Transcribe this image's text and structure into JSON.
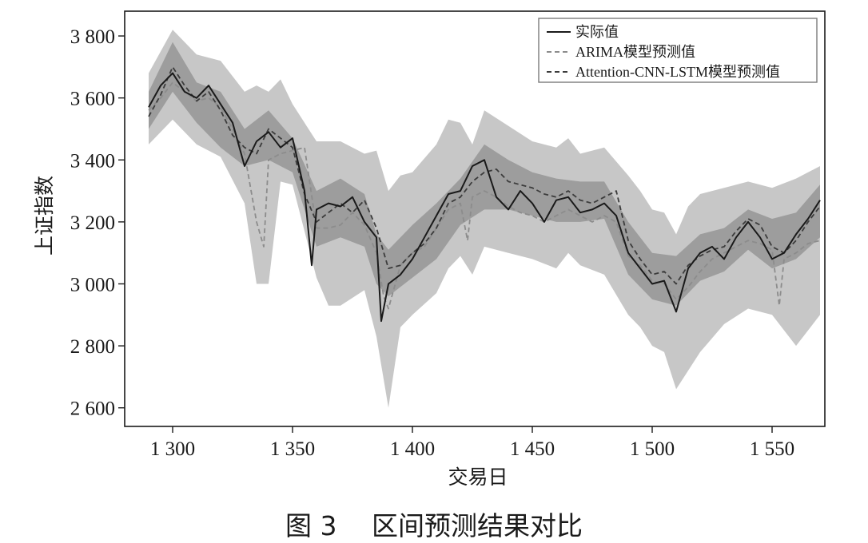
{
  "figure": {
    "caption": "图 3　 区间预测结果对比"
  },
  "colors": {
    "actual": "#1a1a1a",
    "arima": "#8c8c8c",
    "attention": "#3c3c3c",
    "band": "#bdbdbd",
    "band_dark": "#8f8f8f"
  },
  "chart_data": {
    "type": "line",
    "title": "",
    "xlabel": "交易日",
    "ylabel": "上证指数",
    "xlim": [
      1280,
      1572
    ],
    "ylim": [
      2540,
      3880
    ],
    "xticks": [
      1300,
      1350,
      1400,
      1450,
      1500,
      1550
    ],
    "xtick_labels": [
      "1 300",
      "1 350",
      "1 400",
      "1 450",
      "1 500",
      "1 550"
    ],
    "yticks": [
      2600,
      2800,
      3000,
      3200,
      3400,
      3600,
      3800
    ],
    "ytick_labels": [
      "2 600",
      "2 800",
      "3 000",
      "3 200",
      "3 400",
      "3 600",
      "3 800"
    ],
    "grid": false,
    "legend_position": "top-right",
    "series": [
      {
        "name": "实际值",
        "style": "solid",
        "x": [
          1290,
          1295,
          1300,
          1305,
          1310,
          1315,
          1320,
          1325,
          1330,
          1335,
          1340,
          1345,
          1350,
          1355,
          1358,
          1360,
          1365,
          1370,
          1375,
          1380,
          1385,
          1387,
          1390,
          1395,
          1400,
          1405,
          1410,
          1415,
          1420,
          1425,
          1430,
          1435,
          1440,
          1445,
          1450,
          1455,
          1460,
          1465,
          1470,
          1475,
          1480,
          1485,
          1490,
          1495,
          1500,
          1505,
          1510,
          1515,
          1520,
          1525,
          1530,
          1535,
          1540,
          1545,
          1550,
          1555,
          1560,
          1565,
          1570
        ],
        "y": [
          3570,
          3640,
          3680,
          3620,
          3600,
          3640,
          3580,
          3520,
          3380,
          3460,
          3490,
          3440,
          3470,
          3300,
          3060,
          3240,
          3260,
          3250,
          3280,
          3200,
          3150,
          2880,
          3000,
          3030,
          3080,
          3150,
          3220,
          3290,
          3300,
          3380,
          3400,
          3280,
          3240,
          3300,
          3260,
          3200,
          3270,
          3280,
          3230,
          3240,
          3260,
          3220,
          3100,
          3050,
          3000,
          3010,
          2910,
          3050,
          3100,
          3120,
          3080,
          3150,
          3200,
          3150,
          3080,
          3100,
          3160,
          3210,
          3270
        ]
      },
      {
        "name": "ARIMA模型预测值",
        "style": "dashed",
        "x": [
          1290,
          1295,
          1300,
          1305,
          1310,
          1315,
          1320,
          1325,
          1330,
          1335,
          1338,
          1340,
          1345,
          1350,
          1355,
          1360,
          1365,
          1370,
          1375,
          1380,
          1385,
          1388,
          1390,
          1395,
          1400,
          1405,
          1410,
          1415,
          1420,
          1423,
          1425,
          1430,
          1435,
          1440,
          1445,
          1450,
          1455,
          1460,
          1465,
          1470,
          1475,
          1480,
          1485,
          1490,
          1495,
          1500,
          1505,
          1510,
          1515,
          1520,
          1525,
          1530,
          1535,
          1540,
          1545,
          1550,
          1553,
          1555,
          1560,
          1565,
          1570
        ],
        "y": [
          3560,
          3600,
          3650,
          3620,
          3590,
          3600,
          3570,
          3500,
          3420,
          3200,
          3120,
          3400,
          3420,
          3430,
          3440,
          3180,
          3180,
          3190,
          3230,
          3190,
          3100,
          2960,
          2920,
          3060,
          3100,
          3120,
          3180,
          3240,
          3260,
          3140,
          3280,
          3300,
          3280,
          3250,
          3230,
          3220,
          3200,
          3220,
          3240,
          3220,
          3200,
          3220,
          3200,
          3090,
          3060,
          3010,
          3000,
          2950,
          2990,
          3040,
          3080,
          3100,
          3120,
          3140,
          3130,
          3110,
          2930,
          3080,
          3100,
          3130,
          3140
        ]
      },
      {
        "name": "Attention-CNN-LSTM模型预测值",
        "style": "dashed",
        "x": [
          1290,
          1295,
          1300,
          1305,
          1310,
          1315,
          1320,
          1325,
          1330,
          1335,
          1340,
          1345,
          1350,
          1355,
          1360,
          1365,
          1370,
          1375,
          1380,
          1385,
          1390,
          1395,
          1400,
          1405,
          1410,
          1415,
          1420,
          1425,
          1430,
          1435,
          1440,
          1445,
          1450,
          1455,
          1460,
          1465,
          1470,
          1475,
          1480,
          1485,
          1490,
          1495,
          1500,
          1505,
          1510,
          1515,
          1520,
          1525,
          1530,
          1535,
          1540,
          1545,
          1550,
          1555,
          1560,
          1565,
          1570
        ],
        "y": [
          3540,
          3610,
          3700,
          3640,
          3590,
          3620,
          3560,
          3480,
          3440,
          3420,
          3500,
          3470,
          3440,
          3290,
          3200,
          3230,
          3260,
          3230,
          3270,
          3180,
          3050,
          3060,
          3100,
          3130,
          3180,
          3260,
          3280,
          3330,
          3360,
          3370,
          3330,
          3320,
          3310,
          3290,
          3280,
          3300,
          3270,
          3260,
          3280,
          3300,
          3140,
          3080,
          3030,
          3040,
          3000,
          3060,
          3090,
          3110,
          3120,
          3170,
          3210,
          3190,
          3120,
          3100,
          3140,
          3200,
          3250
        ]
      }
    ],
    "intervals": [
      {
        "name": "ARIMA",
        "x": [
          1290,
          1300,
          1310,
          1320,
          1330,
          1335,
          1340,
          1345,
          1350,
          1360,
          1365,
          1370,
          1380,
          1385,
          1390,
          1395,
          1400,
          1410,
          1415,
          1420,
          1425,
          1430,
          1440,
          1450,
          1460,
          1465,
          1470,
          1480,
          1490,
          1495,
          1500,
          1505,
          1510,
          1515,
          1520,
          1530,
          1540,
          1550,
          1560,
          1570
        ],
        "low": [
          3450,
          3530,
          3450,
          3410,
          3260,
          3000,
          3000,
          3330,
          3320,
          3020,
          2930,
          2930,
          2980,
          2830,
          2600,
          2860,
          2900,
          2970,
          3050,
          3090,
          3030,
          3120,
          3100,
          3080,
          3050,
          3100,
          3060,
          3030,
          2900,
          2860,
          2800,
          2780,
          2660,
          2720,
          2780,
          2870,
          2920,
          2900,
          2800,
          2900
        ],
        "high": [
          3680,
          3820,
          3740,
          3720,
          3620,
          3640,
          3620,
          3660,
          3580,
          3460,
          3460,
          3460,
          3420,
          3430,
          3300,
          3350,
          3360,
          3450,
          3530,
          3520,
          3450,
          3560,
          3510,
          3460,
          3440,
          3470,
          3420,
          3440,
          3350,
          3300,
          3240,
          3230,
          3160,
          3250,
          3290,
          3310,
          3330,
          3310,
          3340,
          3380
        ]
      },
      {
        "name": "Attention-CNN-LSTM",
        "x": [
          1290,
          1300,
          1310,
          1320,
          1330,
          1340,
          1350,
          1360,
          1370,
          1380,
          1385,
          1390,
          1400,
          1410,
          1420,
          1430,
          1440,
          1450,
          1460,
          1470,
          1480,
          1490,
          1500,
          1510,
          1520,
          1530,
          1540,
          1550,
          1560,
          1570
        ],
        "low": [
          3500,
          3620,
          3520,
          3440,
          3380,
          3400,
          3360,
          3120,
          3150,
          3120,
          3000,
          2960,
          3020,
          3080,
          3190,
          3240,
          3240,
          3220,
          3200,
          3200,
          3210,
          3030,
          2950,
          2930,
          3010,
          3040,
          3110,
          3050,
          3080,
          3150
        ],
        "high": [
          3620,
          3780,
          3650,
          3620,
          3500,
          3560,
          3470,
          3300,
          3340,
          3290,
          3160,
          3110,
          3190,
          3260,
          3340,
          3450,
          3400,
          3360,
          3340,
          3330,
          3330,
          3200,
          3100,
          3090,
          3160,
          3180,
          3240,
          3210,
          3230,
          3320
        ]
      }
    ]
  }
}
